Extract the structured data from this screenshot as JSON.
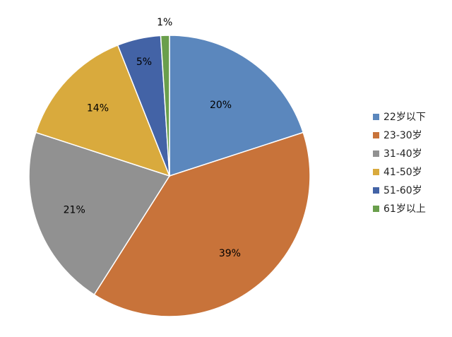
{
  "chart_data": {
    "type": "pie",
    "title": "",
    "legend_position": "right",
    "slices": [
      {
        "label": "22岁以下",
        "value": 20,
        "display": "20%",
        "color": "#5b87bd"
      },
      {
        "label": "23-30岁",
        "value": 39,
        "display": "39%",
        "color": "#c8733a"
      },
      {
        "label": "31-40岁",
        "value": 21,
        "display": "21%",
        "color": "#919191"
      },
      {
        "label": "41-50岁",
        "value": 14,
        "display": "14%",
        "color": "#d9aa3d"
      },
      {
        "label": "51-60岁",
        "value": 5,
        "display": "5%",
        "color": "#4363a6"
      },
      {
        "label": "61岁以上",
        "value": 1,
        "display": "1%",
        "color": "#6a9f4c"
      }
    ]
  }
}
